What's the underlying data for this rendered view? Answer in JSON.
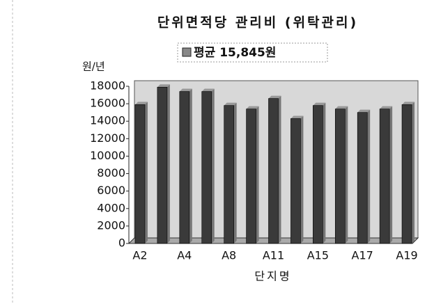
{
  "chart_data": {
    "type": "bar",
    "title": "단위면적당 관리비 (위탁관리)",
    "y_axis_label": "원/년",
    "x_axis_label": "단지명",
    "categories": [
      "A2",
      null,
      "A4",
      null,
      "A8",
      null,
      "A11",
      null,
      "A15",
      null,
      "A17",
      null,
      "A19"
    ],
    "series": [
      {
        "name": "평균 15,845원",
        "color": "#3a3a3a",
        "values": [
          15900,
          17900,
          17400,
          17400,
          15800,
          15400,
          16600,
          14300,
          15800,
          15400,
          15000,
          15400,
          15900
        ]
      }
    ],
    "ylim": [
      0,
      18000
    ],
    "yticks": [
      0,
      2000,
      4000,
      6000,
      8000,
      10000,
      12000,
      14000,
      16000,
      18000
    ],
    "grid": false
  }
}
